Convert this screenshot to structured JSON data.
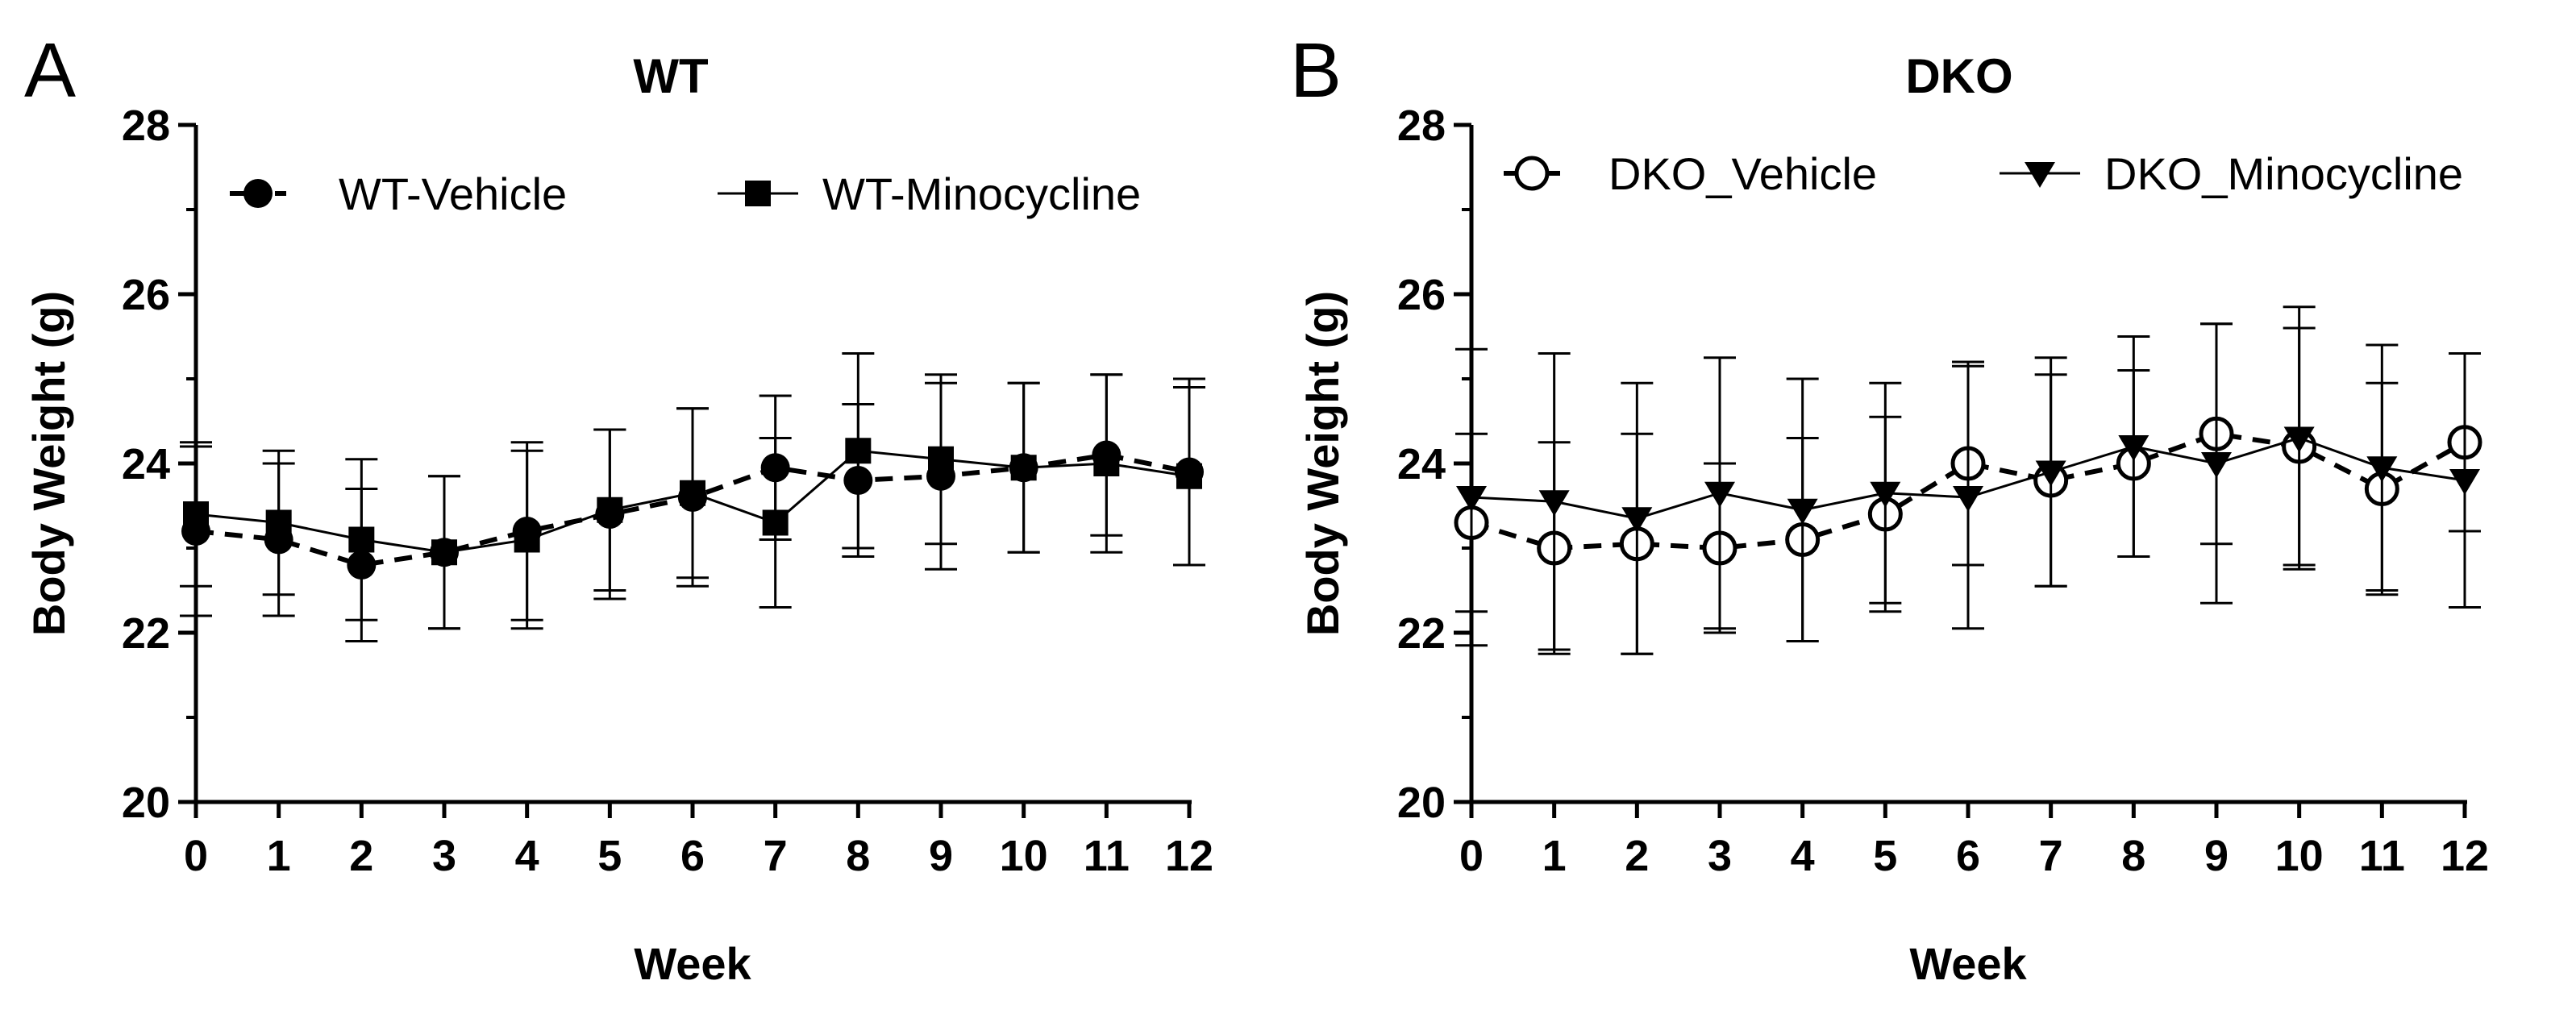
{
  "chart_data": [
    {
      "type": "line",
      "panel_label": "A",
      "title": "WT",
      "xlabel": "Week",
      "ylabel": "Body Weight (g)",
      "xlim": [
        0,
        12
      ],
      "ylim": [
        20,
        28
      ],
      "x_ticks": [
        "0",
        "1",
        "2",
        "3",
        "4",
        "5",
        "6",
        "7",
        "8",
        "9",
        "10",
        "11",
        "12"
      ],
      "y_ticks": [
        "20",
        "22",
        "24",
        "26",
        "28"
      ],
      "x": [
        0,
        1,
        2,
        3,
        4,
        5,
        6,
        7,
        8,
        9,
        10,
        11,
        12
      ],
      "legend_position": "top",
      "series": [
        {
          "name": "WT-Vehicle",
          "marker": "filled-circle",
          "line": "dashed",
          "values": [
            23.2,
            23.1,
            22.8,
            22.95,
            23.2,
            23.4,
            23.6,
            23.95,
            23.8,
            23.85,
            23.95,
            24.1,
            23.9
          ],
          "error": [
            1.0,
            0.9,
            0.9,
            0.9,
            1.05,
            1.0,
            1.05,
            0.85,
            0.9,
            1.1,
            1.0,
            0.95,
            1.1
          ]
        },
        {
          "name": "WT-Minocycline",
          "marker": "filled-square",
          "line": "solid",
          "values": [
            23.4,
            23.3,
            23.1,
            22.95,
            23.1,
            23.45,
            23.65,
            23.3,
            24.15,
            24.05,
            23.95,
            24.0,
            23.85
          ],
          "error": [
            0.85,
            0.85,
            0.95,
            0.9,
            1.05,
            0.95,
            1.0,
            1.0,
            1.15,
            1.0,
            1.0,
            1.05,
            1.05
          ]
        }
      ]
    },
    {
      "type": "line",
      "panel_label": "B",
      "title": "DKO",
      "xlabel": "Week",
      "ylabel": "Body Weight (g)",
      "xlim": [
        0,
        12
      ],
      "ylim": [
        20,
        28
      ],
      "x_ticks": [
        "0",
        "1",
        "2",
        "3",
        "4",
        "5",
        "6",
        "7",
        "8",
        "9",
        "10",
        "11",
        "12"
      ],
      "y_ticks": [
        "20",
        "22",
        "24",
        "26",
        "28"
      ],
      "x": [
        0,
        1,
        2,
        3,
        4,
        5,
        6,
        7,
        8,
        9,
        10,
        11,
        12
      ],
      "legend_position": "top",
      "series": [
        {
          "name": "DKO_Vehicle",
          "marker": "open-circle",
          "line": "dashed",
          "values": [
            23.3,
            23.0,
            23.05,
            23.0,
            23.1,
            23.4,
            24.0,
            23.8,
            24.0,
            24.35,
            24.2,
            23.7,
            24.25
          ],
          "error": [
            1.05,
            1.25,
            1.3,
            1.0,
            1.2,
            1.15,
            1.2,
            1.25,
            1.1,
            1.3,
            1.4,
            1.25,
            1.05
          ]
        },
        {
          "name": "DKO_Minocycline",
          "marker": "filled-triangle-down",
          "line": "solid",
          "values": [
            23.6,
            23.55,
            23.35,
            23.65,
            23.45,
            23.65,
            23.6,
            23.9,
            24.2,
            24.0,
            24.3,
            23.95,
            23.8
          ],
          "error": [
            1.75,
            1.75,
            1.6,
            1.6,
            1.55,
            1.3,
            1.55,
            1.35,
            1.3,
            1.65,
            1.55,
            1.45,
            1.5
          ]
        }
      ]
    }
  ]
}
